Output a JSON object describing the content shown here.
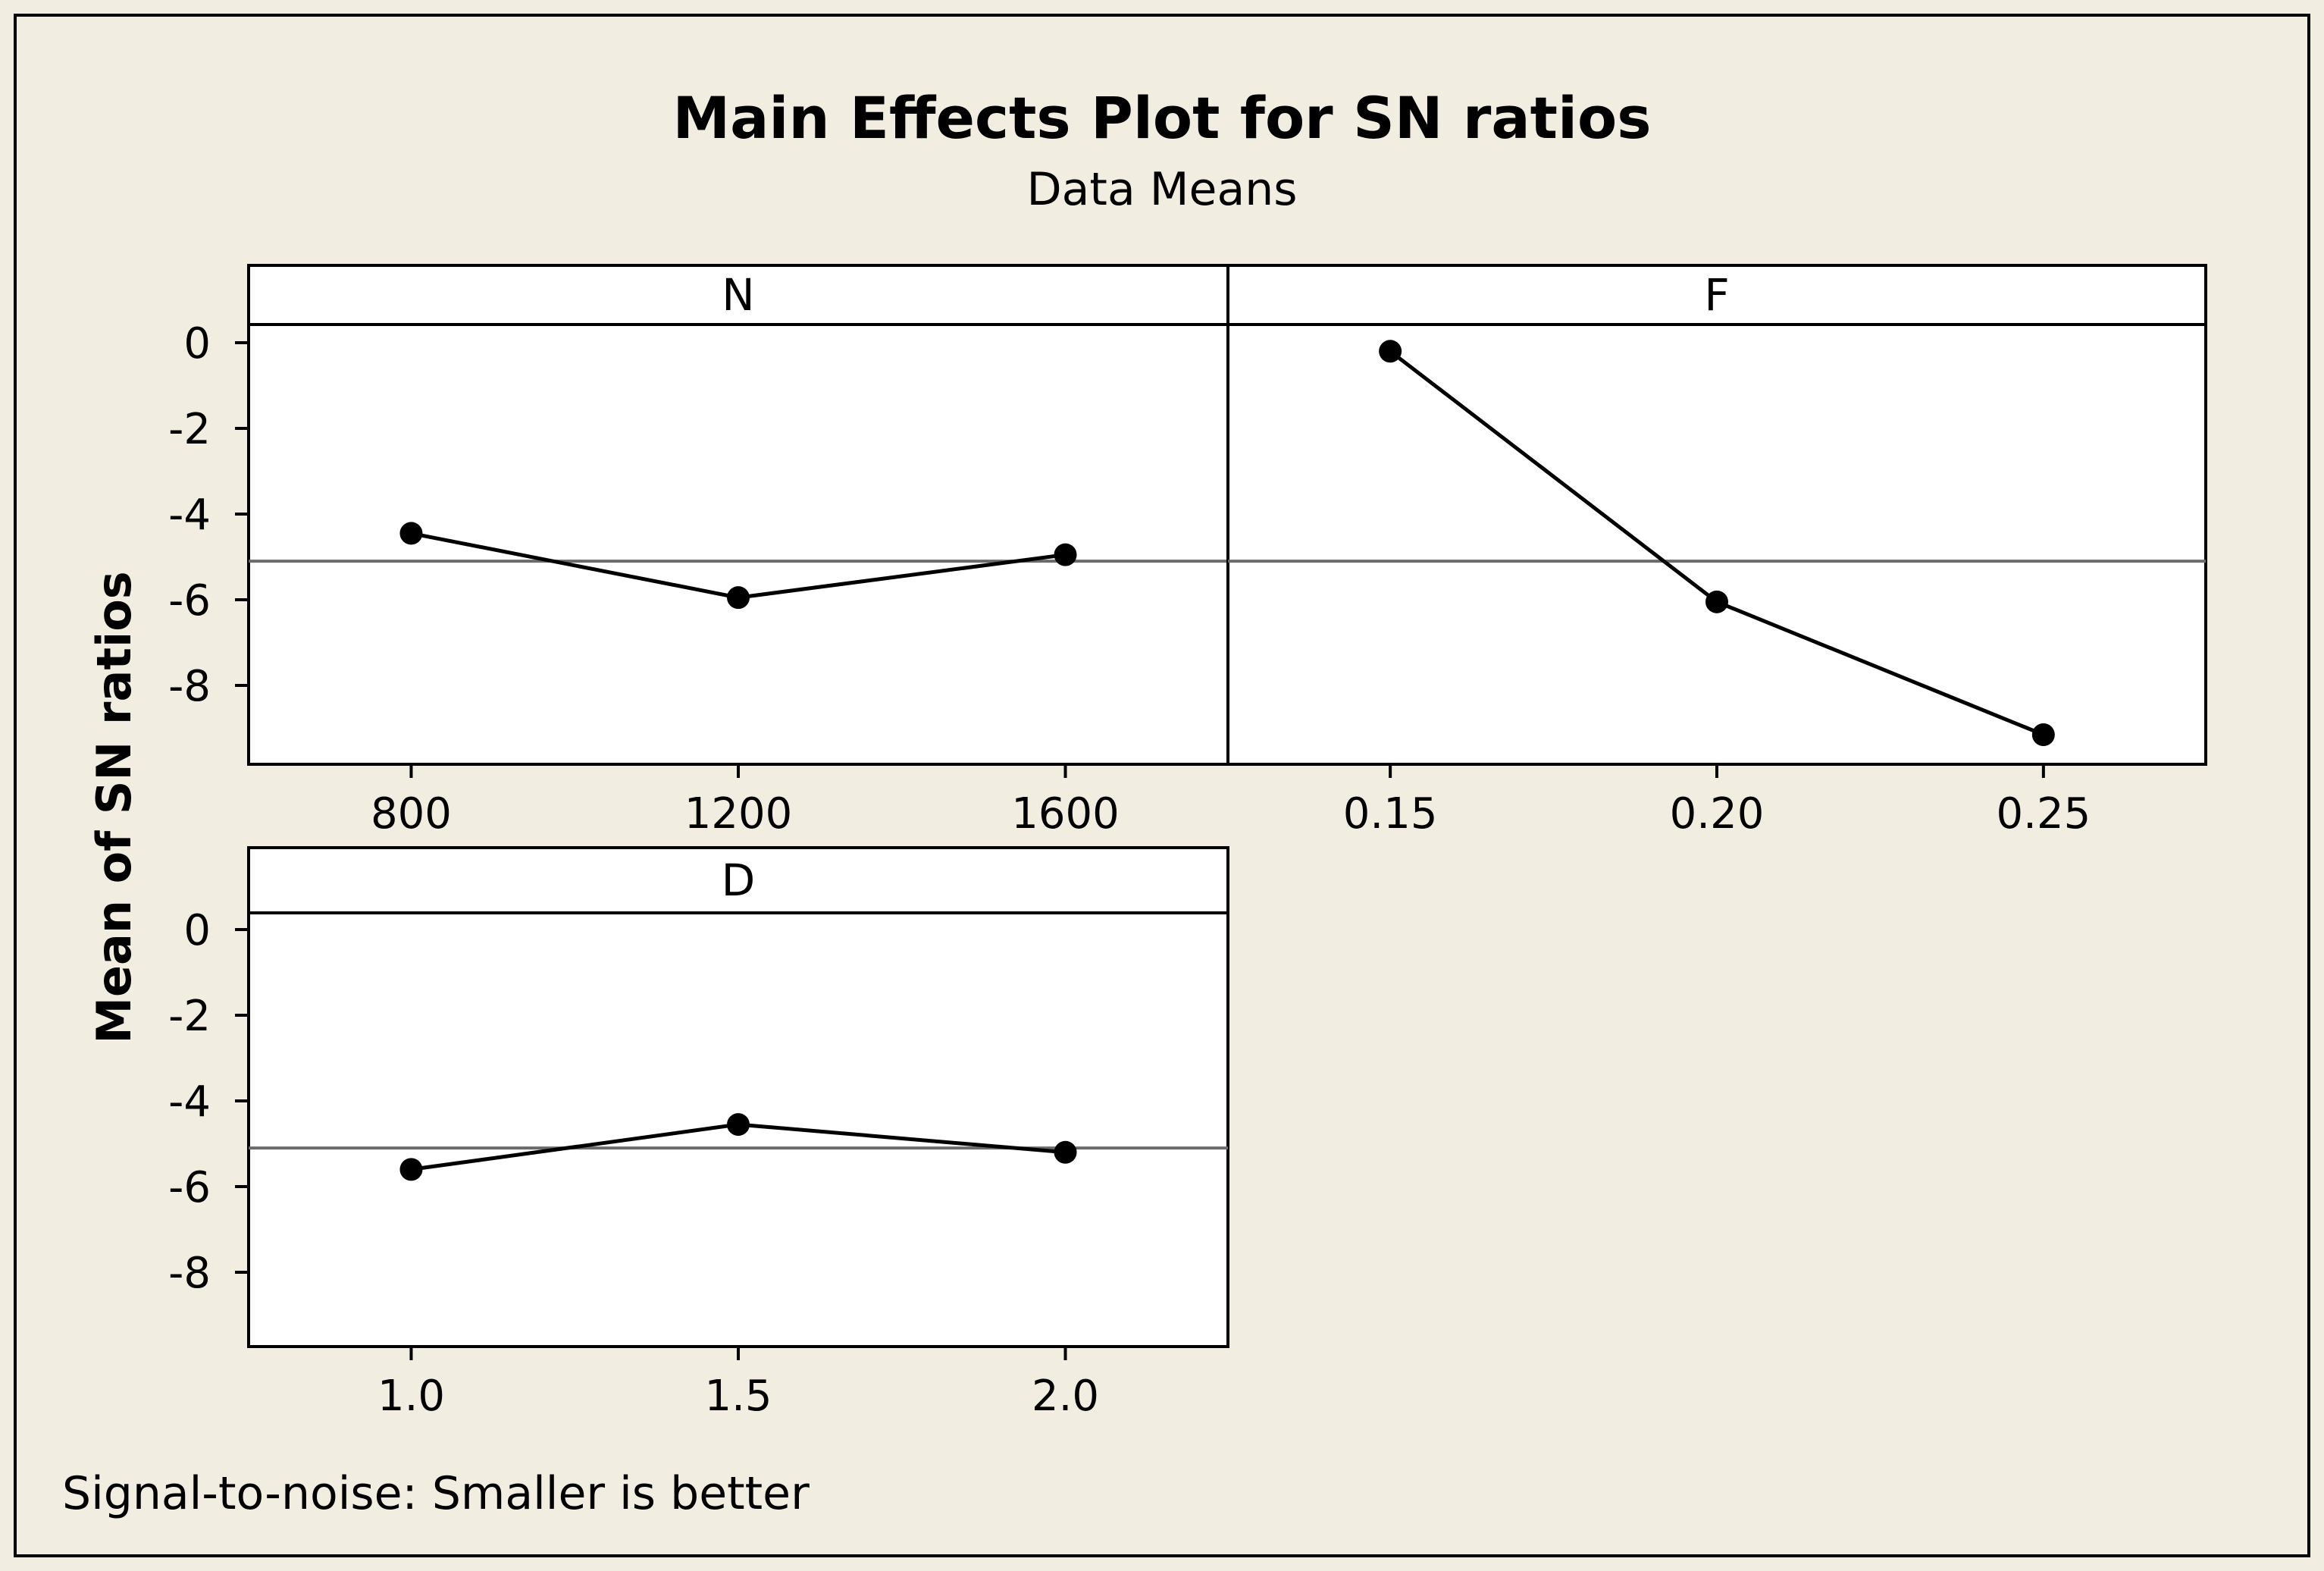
{
  "colors": {
    "background": "#f2ede1",
    "panel_bg": "#ffffff",
    "line": "#000000",
    "reference_line": "#6b6b6b"
  },
  "chart_data": {
    "type": "line",
    "title": "Main Effects Plot for SN ratios",
    "subtitle": "Data Means",
    "ylabel": "Mean of SN ratios",
    "footnote": "Signal-to-noise: Smaller is better",
    "ylim": [
      -9.6,
      1.7
    ],
    "yticks": [
      "0",
      "-2",
      "-4",
      "-6",
      "-8"
    ],
    "ytick_values": [
      0,
      -2,
      -4,
      -6,
      -8
    ],
    "overall_mean": -5.1,
    "panels": [
      {
        "factor": "N",
        "categories": [
          "800",
          "1200",
          "1600"
        ],
        "values": [
          -4.45,
          -5.95,
          -4.95
        ]
      },
      {
        "factor": "F",
        "categories": [
          "0.15",
          "0.20",
          "0.25"
        ],
        "values": [
          -0.2,
          -6.05,
          -9.15
        ]
      },
      {
        "factor": "D",
        "categories": [
          "1.0",
          "1.5",
          "2.0"
        ],
        "values": [
          -5.6,
          -4.55,
          -5.2
        ]
      }
    ]
  }
}
